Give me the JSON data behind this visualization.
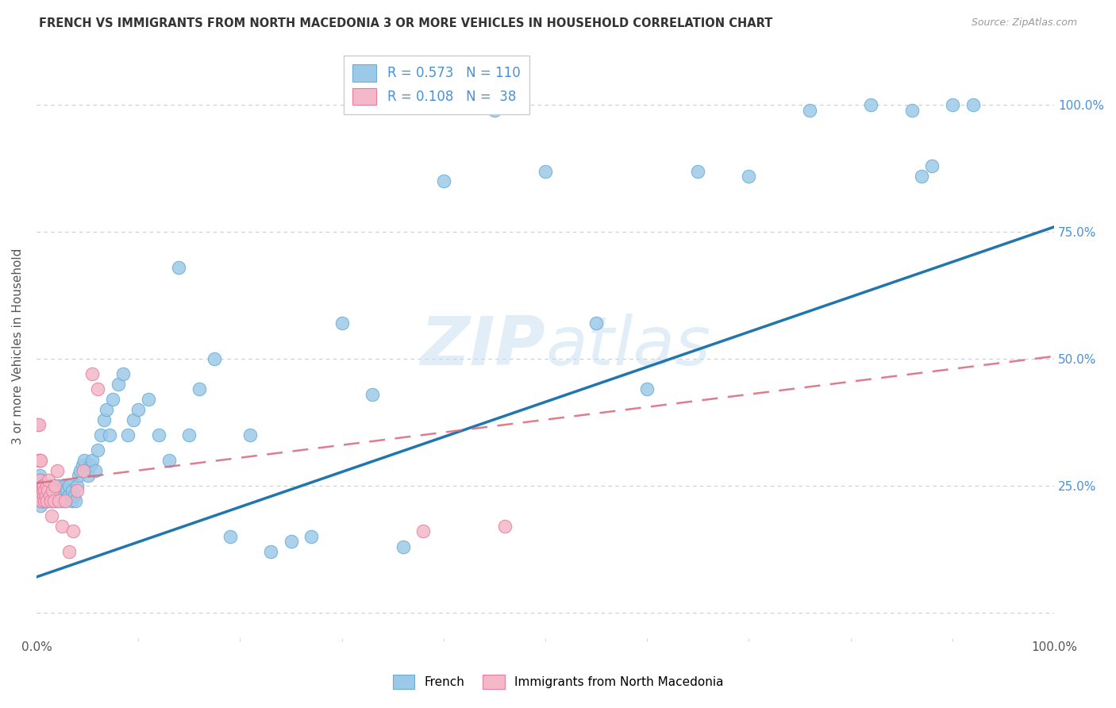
{
  "title": "FRENCH VS IMMIGRANTS FROM NORTH MACEDONIA 3 OR MORE VEHICLES IN HOUSEHOLD CORRELATION CHART",
  "source": "Source: ZipAtlas.com",
  "ylabel": "3 or more Vehicles in Household",
  "legend_label_french": "French",
  "legend_label_immigrants": "Immigrants from North Macedonia",
  "french_R": 0.573,
  "french_N": 110,
  "immigrants_R": 0.108,
  "immigrants_N": 38,
  "french_color": "#9dc9e8",
  "french_edge_color": "#6aaed6",
  "french_line_color": "#2176ae",
  "immigrants_color": "#f4b8c8",
  "immigrants_edge_color": "#e87fa0",
  "immigrants_line_color": "#d9667a",
  "watermark_color": "#c5dff0",
  "grid_color": "#cccccc",
  "background_color": "#ffffff",
  "title_color": "#333333",
  "source_color": "#999999",
  "ytick_color": "#4a90d9",
  "ytick_vals": [
    0.0,
    0.25,
    0.5,
    0.75,
    1.0
  ],
  "ytick_labels": [
    "",
    "25.0%",
    "50.0%",
    "75.0%",
    "100.0%"
  ],
  "french_line_x": [
    0.0,
    1.0
  ],
  "french_line_y": [
    0.07,
    0.76
  ],
  "immigrants_line_x": [
    0.0,
    1.0
  ],
  "immigrants_line_y": [
    0.255,
    0.505
  ],
  "french_scatter_x": [
    0.001,
    0.002,
    0.002,
    0.003,
    0.003,
    0.003,
    0.004,
    0.004,
    0.004,
    0.005,
    0.005,
    0.005,
    0.006,
    0.006,
    0.006,
    0.007,
    0.007,
    0.007,
    0.008,
    0.008,
    0.008,
    0.009,
    0.009,
    0.01,
    0.01,
    0.01,
    0.011,
    0.011,
    0.012,
    0.012,
    0.013,
    0.013,
    0.014,
    0.014,
    0.015,
    0.015,
    0.016,
    0.016,
    0.017,
    0.017,
    0.018,
    0.018,
    0.019,
    0.02,
    0.02,
    0.021,
    0.022,
    0.023,
    0.024,
    0.025,
    0.026,
    0.027,
    0.028,
    0.03,
    0.031,
    0.032,
    0.034,
    0.035,
    0.037,
    0.038,
    0.04,
    0.041,
    0.043,
    0.045,
    0.047,
    0.049,
    0.051,
    0.053,
    0.055,
    0.058,
    0.06,
    0.063,
    0.066,
    0.069,
    0.072,
    0.075,
    0.08,
    0.085,
    0.09,
    0.095,
    0.1,
    0.11,
    0.12,
    0.13,
    0.14,
    0.15,
    0.16,
    0.175,
    0.19,
    0.21,
    0.23,
    0.25,
    0.27,
    0.3,
    0.33,
    0.36,
    0.4,
    0.45,
    0.5,
    0.55,
    0.6,
    0.65,
    0.7,
    0.76,
    0.82,
    0.86,
    0.87,
    0.88,
    0.9,
    0.92
  ],
  "french_scatter_y": [
    0.22,
    0.24,
    0.26,
    0.23,
    0.25,
    0.27,
    0.21,
    0.24,
    0.26,
    0.22,
    0.24,
    0.23,
    0.22,
    0.25,
    0.24,
    0.23,
    0.25,
    0.22,
    0.24,
    0.23,
    0.25,
    0.22,
    0.24,
    0.23,
    0.25,
    0.22,
    0.24,
    0.23,
    0.22,
    0.24,
    0.23,
    0.25,
    0.22,
    0.24,
    0.23,
    0.25,
    0.22,
    0.24,
    0.23,
    0.25,
    0.22,
    0.24,
    0.23,
    0.25,
    0.22,
    0.24,
    0.23,
    0.25,
    0.22,
    0.24,
    0.23,
    0.25,
    0.22,
    0.24,
    0.23,
    0.25,
    0.22,
    0.24,
    0.23,
    0.22,
    0.25,
    0.27,
    0.28,
    0.29,
    0.3,
    0.28,
    0.27,
    0.29,
    0.3,
    0.28,
    0.32,
    0.35,
    0.38,
    0.4,
    0.35,
    0.42,
    0.45,
    0.47,
    0.35,
    0.38,
    0.4,
    0.42,
    0.35,
    0.3,
    0.68,
    0.35,
    0.44,
    0.5,
    0.15,
    0.35,
    0.12,
    0.14,
    0.15,
    0.57,
    0.43,
    0.13,
    0.85,
    0.99,
    0.87,
    0.57,
    0.44,
    0.87,
    0.86,
    0.99,
    1.0,
    0.99,
    0.86,
    0.88,
    1.0,
    1.0
  ],
  "immigrants_scatter_x": [
    0.001,
    0.002,
    0.002,
    0.003,
    0.003,
    0.004,
    0.004,
    0.005,
    0.005,
    0.006,
    0.006,
    0.007,
    0.007,
    0.008,
    0.008,
    0.009,
    0.01,
    0.01,
    0.011,
    0.012,
    0.013,
    0.014,
    0.015,
    0.016,
    0.017,
    0.018,
    0.02,
    0.022,
    0.025,
    0.028,
    0.032,
    0.036,
    0.04,
    0.046,
    0.055,
    0.06,
    0.38,
    0.46
  ],
  "immigrants_scatter_y": [
    0.37,
    0.3,
    0.37,
    0.26,
    0.3,
    0.23,
    0.3,
    0.23,
    0.22,
    0.25,
    0.24,
    0.23,
    0.25,
    0.22,
    0.24,
    0.23,
    0.22,
    0.25,
    0.24,
    0.26,
    0.23,
    0.22,
    0.19,
    0.24,
    0.22,
    0.25,
    0.28,
    0.22,
    0.17,
    0.22,
    0.12,
    0.16,
    0.24,
    0.28,
    0.47,
    0.44,
    0.16,
    0.17
  ],
  "xlim": [
    0.0,
    1.0
  ],
  "ylim": [
    -0.05,
    1.1
  ]
}
